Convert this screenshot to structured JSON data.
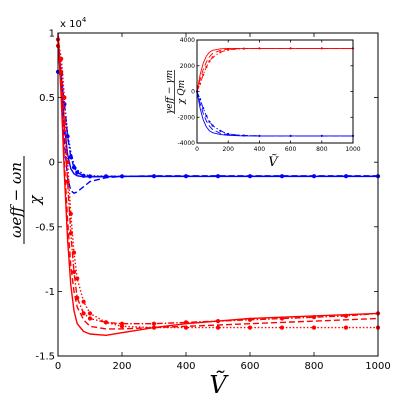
{
  "chart_data": [
    {
      "type": "line",
      "multiplier": "x 10",
      "multiplier_exponent": "4",
      "ylabel": {
        "numerator": "ωeff − ωn",
        "denominator": "χ"
      },
      "xlabel": "Ṽ",
      "xlim": [
        0,
        1000
      ],
      "ylim": [
        -15000,
        10000
      ],
      "x_ticks": [
        "0",
        "200",
        "400",
        "600",
        "800",
        "1000"
      ],
      "y_ticks": [
        "1",
        "0.5",
        "0",
        "-0.5",
        "-1",
        "-1.5"
      ],
      "grid": false,
      "series": [
        {
          "color": "#0000ff",
          "style": "solid",
          "marker": "none",
          "x": [
            0,
            10,
            20,
            30,
            40,
            50,
            60,
            80,
            100,
            150,
            200,
            300,
            400,
            500,
            600,
            700,
            800,
            900,
            1000
          ],
          "y": [
            9800,
            6500,
            2800,
            600,
            -500,
            -900,
            -1050,
            -1120,
            -1130,
            -1120,
            -1110,
            -1100,
            -1100,
            -1100,
            -1100,
            -1100,
            -1100,
            -1100,
            -1100
          ]
        },
        {
          "color": "#0000ff",
          "style": "dashed",
          "marker": "none",
          "x": [
            0,
            10,
            20,
            30,
            40,
            50,
            60,
            80,
            100,
            150,
            200,
            300,
            400,
            500,
            600,
            700,
            800,
            900,
            1000
          ],
          "y": [
            9500,
            5800,
            1500,
            -1200,
            -2200,
            -2400,
            -2300,
            -1900,
            -1500,
            -1200,
            -1100,
            -1050,
            -1050,
            -1050,
            -1050,
            -1050,
            -1050,
            -1050,
            -1050
          ]
        },
        {
          "color": "#0000ff",
          "style": "dashdot",
          "marker": "circle",
          "x": [
            0,
            10,
            20,
            30,
            40,
            50,
            60,
            80,
            100,
            150,
            200,
            300,
            400,
            500,
            600,
            700,
            800,
            900,
            1000
          ],
          "y": [
            7000,
            6800,
            4500,
            2000,
            400,
            -400,
            -800,
            -1050,
            -1100,
            -1100,
            -1090,
            -1080,
            -1080,
            -1080,
            -1080,
            -1080,
            -1080,
            -1080,
            -1080
          ]
        },
        {
          "color": "#0000ff",
          "style": "dotted",
          "marker": "none",
          "x": [
            0,
            10,
            20,
            30,
            40,
            50,
            60,
            80,
            100,
            150,
            200,
            300,
            400,
            500,
            600,
            700,
            800,
            900,
            1000
          ],
          "y": [
            9500,
            8000,
            4800,
            2200,
            800,
            -200,
            -600,
            -950,
            -1050,
            -1080,
            -1080,
            -1080,
            -1080,
            -1080,
            -1080,
            -1080,
            -1080,
            -1080,
            -1080
          ]
        },
        {
          "color": "#ff0000",
          "style": "solid",
          "marker": "none",
          "x": [
            0,
            10,
            20,
            30,
            40,
            50,
            60,
            80,
            100,
            150,
            200,
            300,
            400,
            500,
            600,
            700,
            800,
            900,
            1000
          ],
          "y": [
            10000,
            5000,
            -1000,
            -6000,
            -9500,
            -11500,
            -12500,
            -13100,
            -13300,
            -13400,
            -13200,
            -12800,
            -12500,
            -12300,
            -12100,
            -12000,
            -11900,
            -11800,
            -11700
          ]
        },
        {
          "color": "#ff0000",
          "style": "dashed",
          "marker": "none",
          "x": [
            0,
            10,
            20,
            30,
            40,
            50,
            60,
            80,
            100,
            150,
            200,
            300,
            400,
            500,
            600,
            700,
            800,
            900,
            1000
          ],
          "y": [
            9800,
            5500,
            0,
            -4500,
            -8000,
            -10000,
            -11200,
            -12200,
            -12700,
            -12900,
            -12900,
            -12800,
            -12700,
            -12600,
            -12500,
            -12400,
            -12300,
            -12200,
            -12100
          ]
        },
        {
          "color": "#ff0000",
          "style": "dashdot",
          "marker": "circle",
          "x": [
            0,
            10,
            20,
            30,
            40,
            50,
            60,
            80,
            100,
            150,
            200,
            300,
            400,
            500,
            600,
            700,
            800,
            900,
            1000
          ],
          "y": [
            9000,
            7000,
            3000,
            -1500,
            -5500,
            -8500,
            -10500,
            -11700,
            -12100,
            -12400,
            -12500,
            -12500,
            -12400,
            -12300,
            -12200,
            -12100,
            -12000,
            -11900,
            -11700
          ]
        },
        {
          "color": "#ff0000",
          "style": "dotted",
          "marker": "circle",
          "x": [
            0,
            10,
            20,
            30,
            40,
            50,
            60,
            80,
            100,
            150,
            200,
            300,
            400,
            500,
            600,
            700,
            800,
            900,
            1000
          ],
          "y": [
            9500,
            8000,
            5000,
            0,
            -4000,
            -7000,
            -9000,
            -10800,
            -11700,
            -12400,
            -12700,
            -12800,
            -12800,
            -12800,
            -12800,
            -12800,
            -12800,
            -12800,
            -12800
          ]
        }
      ]
    },
    {
      "type": "line",
      "ylabel": {
        "numerator": "γeff − γm",
        "denominator": "χ Qm"
      },
      "xlabel": "Ṽ",
      "xlim": [
        0,
        1000
      ],
      "ylim": [
        -4000,
        4000
      ],
      "x_ticks": [
        "0",
        "200",
        "400",
        "600",
        "800",
        "1000"
      ],
      "y_ticks": [
        "4000",
        "2000",
        "0",
        "-2000",
        "-4000"
      ],
      "grid": false,
      "series": [
        {
          "color": "#ff0000",
          "style": "solid",
          "marker": "none",
          "x": [
            0,
            20,
            40,
            60,
            80,
            100,
            150,
            200,
            300,
            400,
            600,
            800,
            1000
          ],
          "y": [
            0,
            1300,
            2200,
            2750,
            3050,
            3200,
            3320,
            3350,
            3350,
            3350,
            3350,
            3350,
            3350
          ]
        },
        {
          "color": "#ff0000",
          "style": "dashed",
          "marker": "none",
          "x": [
            0,
            20,
            40,
            60,
            80,
            100,
            150,
            200,
            300,
            400,
            600,
            800,
            1000
          ],
          "y": [
            0,
            900,
            1700,
            2300,
            2700,
            2950,
            3200,
            3300,
            3350,
            3350,
            3350,
            3350,
            3350
          ]
        },
        {
          "color": "#ff0000",
          "style": "dashdot",
          "marker": "circle",
          "x": [
            0,
            20,
            40,
            60,
            80,
            100,
            150,
            200,
            300,
            400,
            600,
            800,
            1000
          ],
          "y": [
            0,
            600,
            1300,
            1900,
            2350,
            2650,
            3050,
            3250,
            3330,
            3350,
            3350,
            3350,
            3350
          ]
        },
        {
          "color": "#0000ff",
          "style": "solid",
          "marker": "none",
          "x": [
            0,
            20,
            40,
            60,
            80,
            100,
            150,
            200,
            300,
            400,
            600,
            800,
            1000
          ],
          "y": [
            0,
            -1300,
            -2200,
            -2750,
            -3050,
            -3200,
            -3350,
            -3400,
            -3450,
            -3450,
            -3450,
            -3450,
            -3450
          ]
        },
        {
          "color": "#0000ff",
          "style": "dashed",
          "marker": "none",
          "x": [
            0,
            20,
            40,
            60,
            80,
            100,
            150,
            200,
            300,
            400,
            600,
            800,
            1000
          ],
          "y": [
            0,
            -900,
            -1700,
            -2300,
            -2700,
            -2950,
            -3250,
            -3350,
            -3420,
            -3450,
            -3450,
            -3450,
            -3450
          ]
        },
        {
          "color": "#0000ff",
          "style": "dashdot",
          "marker": "circle",
          "x": [
            0,
            20,
            40,
            60,
            80,
            100,
            150,
            200,
            300,
            400,
            600,
            800,
            1000
          ],
          "y": [
            0,
            -600,
            -1300,
            -1900,
            -2350,
            -2650,
            -3050,
            -3300,
            -3420,
            -3450,
            -3450,
            -3450,
            -3450
          ]
        }
      ]
    }
  ]
}
